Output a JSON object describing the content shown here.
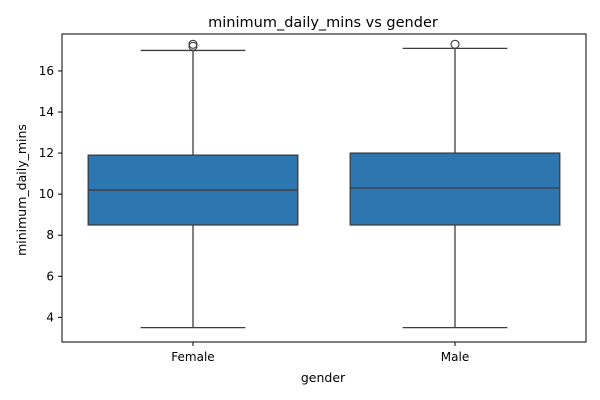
{
  "chart_data": {
    "type": "boxplot",
    "title": "minimum_daily_mins vs gender",
    "xlabel": "gender",
    "ylabel": "minimum_daily_mins",
    "ylim": [
      2.8,
      17.8
    ],
    "yticks": [
      4,
      6,
      8,
      10,
      12,
      14,
      16
    ],
    "grid": false,
    "legend": "none",
    "categories": [
      "Female",
      "Male"
    ],
    "boxes": [
      {
        "category": "Female",
        "whisker_low": 3.5,
        "q1": 8.5,
        "median": 10.2,
        "q3": 11.9,
        "whisker_high": 17.0,
        "outliers": [
          17.2,
          17.3
        ]
      },
      {
        "category": "Male",
        "whisker_low": 3.5,
        "q1": 8.5,
        "median": 10.3,
        "q3": 12.0,
        "whisker_high": 17.1,
        "outliers": [
          17.3
        ]
      }
    ],
    "colors": {
      "box_fill": "#2e76b0",
      "line": "#3d3d3d",
      "axis": "#000000"
    }
  }
}
